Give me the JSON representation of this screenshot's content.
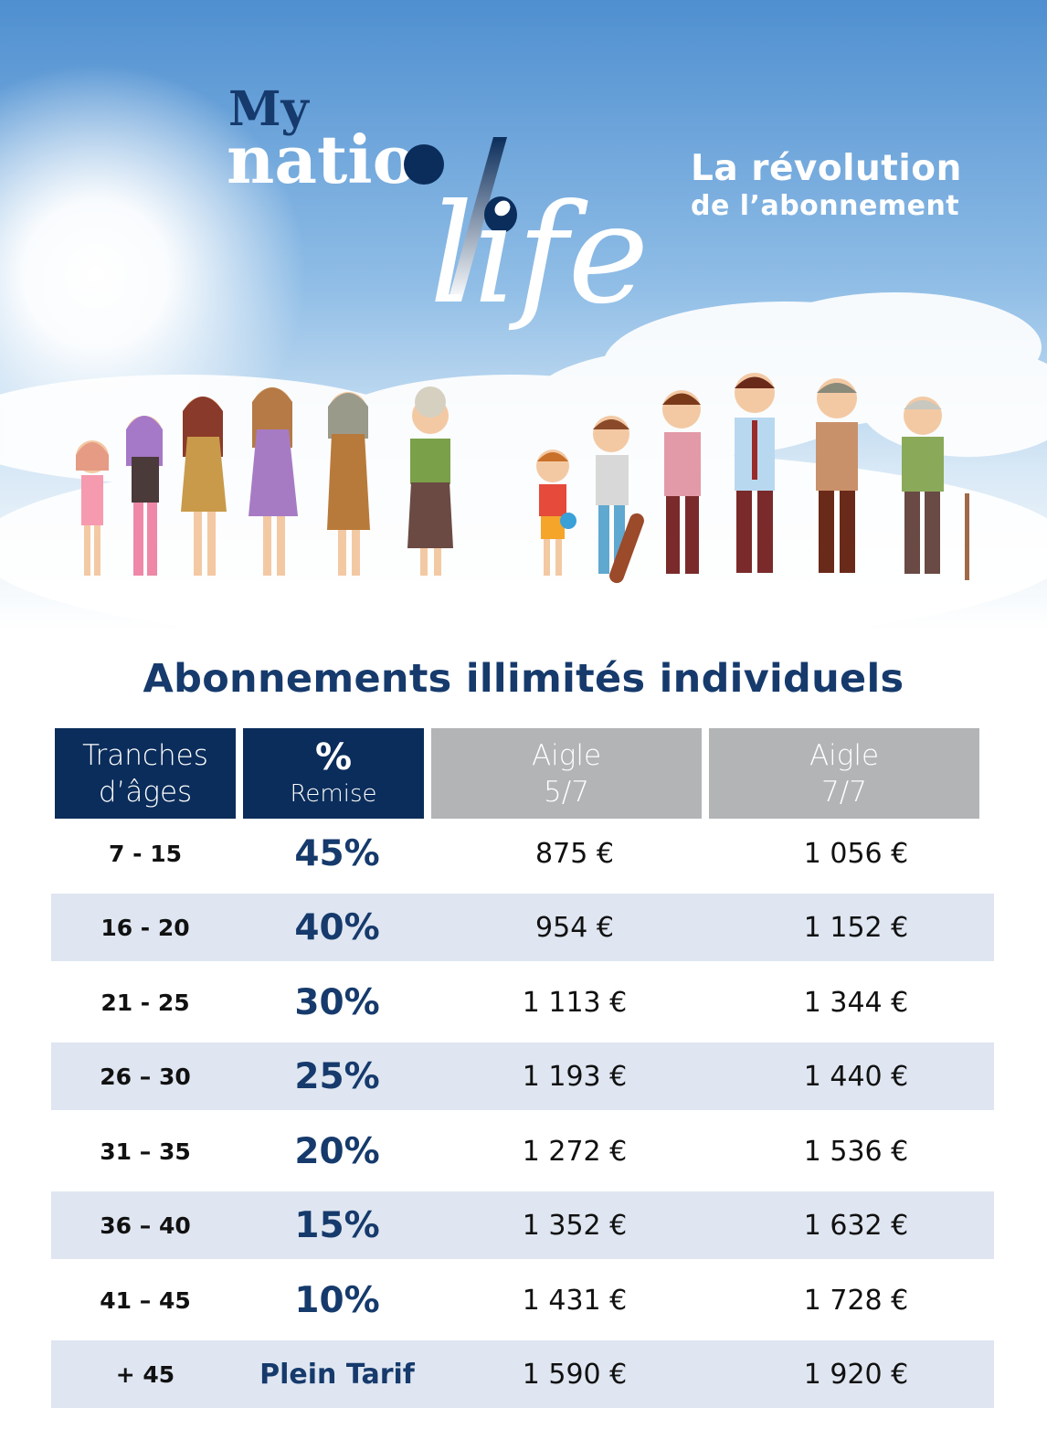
{
  "brand": {
    "logo_my": "My",
    "logo_nation": "natio",
    "logo_life": "life"
  },
  "tagline": {
    "line1": "La révolution",
    "line2": "de l’abonnement"
  },
  "section_title": "Abonnements illimités individuels",
  "table": {
    "headers": {
      "age_line1": "Tranches",
      "age_line2": "d’âges",
      "pct_line1": "%",
      "pct_line2": "Remise",
      "p5_line1": "Aigle",
      "p5_line2": "5/7",
      "p7_line1": "Aigle",
      "p7_line2": "7/7"
    },
    "rows": [
      {
        "age": "7 -  15",
        "discount": "45%",
        "price_5_7": "875 €",
        "price_7_7": "1 056 €"
      },
      {
        "age": "16 - 20",
        "discount": "40%",
        "price_5_7": "954 €",
        "price_7_7": "1 152 €"
      },
      {
        "age": "21 - 25",
        "discount": "30%",
        "price_5_7": "1 113 €",
        "price_7_7": "1 344 €"
      },
      {
        "age": "26 – 30",
        "discount": "25%",
        "price_5_7": "1 193 €",
        "price_7_7": "1 440 €"
      },
      {
        "age": "31 – 35",
        "discount": "20%",
        "price_5_7": "1 272 €",
        "price_7_7": "1 536 €"
      },
      {
        "age": "36 – 40",
        "discount": "15%",
        "price_5_7": "1 352 €",
        "price_7_7": "1 632 €"
      },
      {
        "age": "41 – 45",
        "discount": "10%",
        "price_5_7": "1 431 €",
        "price_7_7": "1 728 €"
      },
      {
        "age": "+ 45",
        "discount": "Plein Tarif",
        "price_5_7": "1 590 €",
        "price_7_7": "1 920 €"
      }
    ]
  },
  "colors": {
    "navy": "#0b2d5b",
    "title_blue": "#163a6c",
    "header_grey": "#b2b4b6",
    "row_shade": "#dfe6f1"
  }
}
